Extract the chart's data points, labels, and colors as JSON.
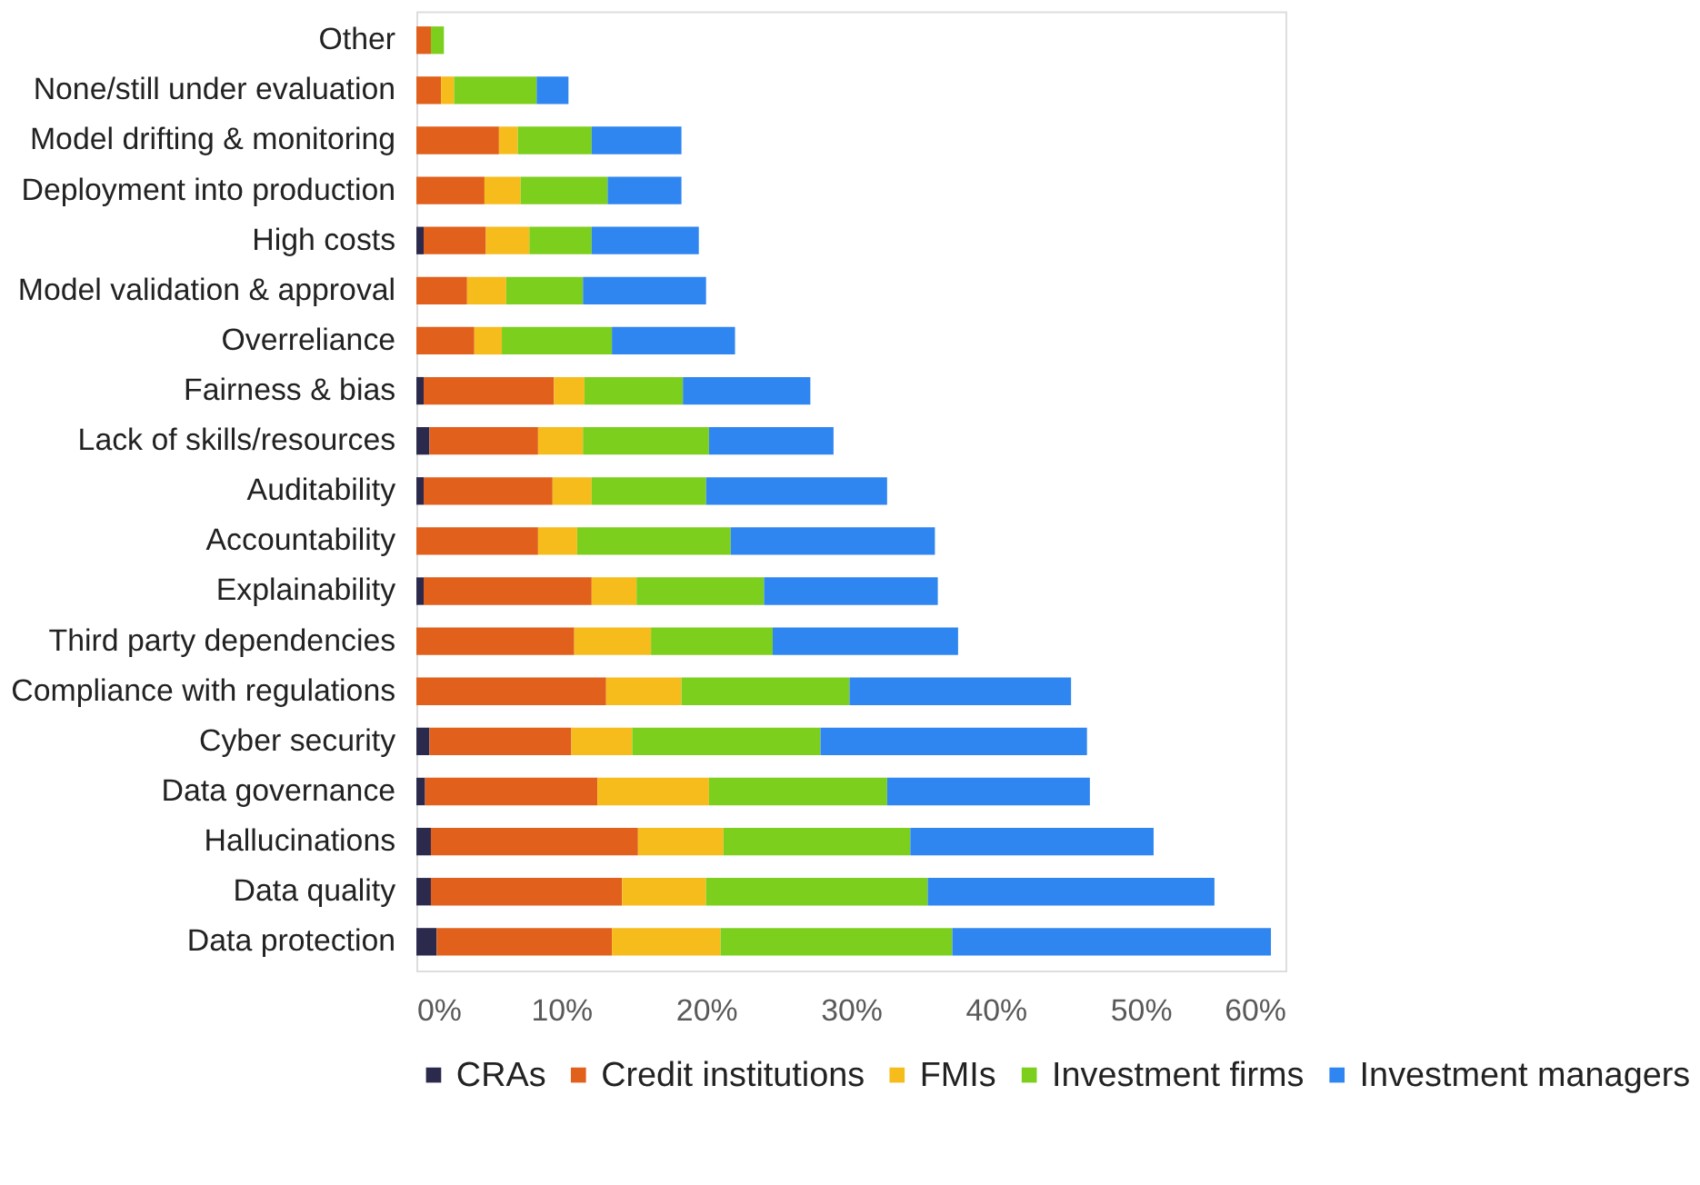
{
  "chart_data": {
    "type": "bar",
    "orientation": "horizontal",
    "stacked": true,
    "legend": "bottom",
    "grid": false,
    "categories": [
      "Other",
      "None/still under evaluation",
      "Model drifting & monitoring",
      "Deployment into production",
      "High costs",
      "Model validation & approval",
      "Overreliance",
      "Fairness & bias",
      "Lack of skills/resources",
      "Auditability",
      "Accountability",
      "Explainability",
      "Third party dependencies",
      "Compliance with regulations",
      "Cyber security",
      "Data governance",
      "Hallucinations",
      "Data quality",
      "Data protection"
    ],
    "series": [
      {
        "name": "CRAs",
        "color": "#2b2a4c",
        "values": [
          0,
          0,
          0,
          0,
          0.5,
          0,
          0,
          0.5,
          0.9,
          0.5,
          0,
          0.5,
          0,
          0,
          0.9,
          0.6,
          1.0,
          1.0,
          1.4
        ]
      },
      {
        "name": "Credit institutions",
        "color": "#e0601c",
        "values": [
          1.0,
          1.7,
          5.7,
          4.7,
          4.3,
          3.5,
          4.0,
          9.0,
          7.5,
          8.9,
          8.4,
          11.6,
          10.9,
          13.1,
          9.8,
          11.9,
          14.3,
          13.2,
          12.1
        ]
      },
      {
        "name": "FMIs",
        "color": "#f5bc1c",
        "values": [
          0,
          0.9,
          1.3,
          2.5,
          3.0,
          2.7,
          1.9,
          2.1,
          3.1,
          2.7,
          2.7,
          3.1,
          5.3,
          5.2,
          4.2,
          7.7,
          5.9,
          5.8,
          7.5
        ]
      },
      {
        "name": "Investment firms",
        "color": "#7ccf1c",
        "values": [
          0.9,
          5.7,
          5.1,
          6.0,
          4.3,
          5.3,
          7.6,
          6.8,
          8.7,
          7.9,
          10.6,
          8.8,
          8.4,
          11.6,
          13.0,
          12.3,
          12.9,
          15.3,
          16.0
        ]
      },
      {
        "name": "Investment managers",
        "color": "#2f86f0",
        "values": [
          0,
          2.2,
          6.2,
          5.1,
          7.4,
          8.5,
          8.5,
          8.8,
          8.6,
          12.5,
          14.1,
          12.0,
          12.8,
          15.3,
          18.4,
          14.0,
          16.8,
          19.8,
          22.0
        ]
      }
    ],
    "xlim": [
      0,
      60
    ],
    "xticks": [
      {
        "value": 0,
        "label": "0%"
      },
      {
        "value": 10,
        "label": "10%"
      },
      {
        "value": 20,
        "label": "20%"
      },
      {
        "value": 30,
        "label": "30%"
      },
      {
        "value": 40,
        "label": "40%"
      },
      {
        "value": 50,
        "label": "50%"
      },
      {
        "value": 60,
        "label": "60%"
      }
    ]
  }
}
